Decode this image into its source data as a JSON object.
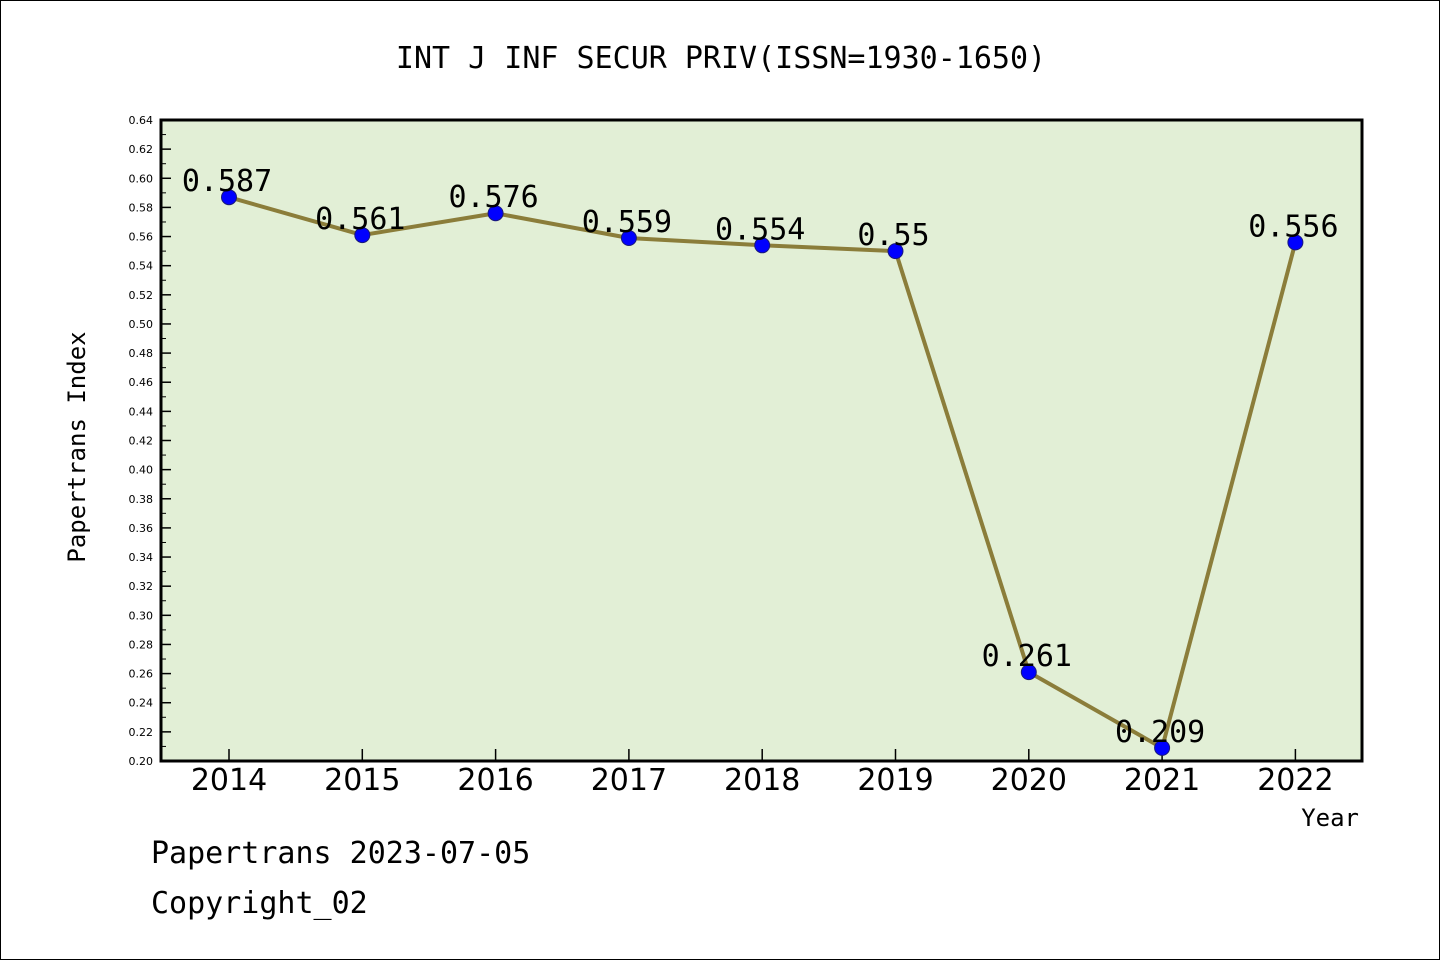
{
  "chart_data": {
    "type": "line",
    "title": "INT J INF SECUR PRIV(ISSN=1930-1650)",
    "xlabel": "Year",
    "ylabel": "Papertrans Index",
    "categories": [
      "2014",
      "2015",
      "2016",
      "2017",
      "2018",
      "2019",
      "2020",
      "2021",
      "2022"
    ],
    "series": [
      {
        "values": [
          0.587,
          0.561,
          0.576,
          0.559,
          0.554,
          0.55,
          0.261,
          0.209,
          0.556
        ],
        "data_labels": [
          "0.587",
          "0.561",
          "0.576",
          "0.559",
          "0.554",
          "0.55",
          "0.261",
          "0.209",
          "0.556"
        ],
        "line_color": "#8b7d3a",
        "marker_color": "#0000ff"
      }
    ],
    "ylim": [
      0.2,
      0.64
    ],
    "y_ticks": [
      "0.20",
      "0.22",
      "0.24",
      "0.26",
      "0.28",
      "0.30",
      "0.32",
      "0.34",
      "0.36",
      "0.38",
      "0.40",
      "0.42",
      "0.44",
      "0.46",
      "0.48",
      "0.50",
      "0.52",
      "0.54",
      "0.56",
      "0.58",
      "0.60",
      "0.62",
      "0.64"
    ],
    "plot_background": "#e2efd6",
    "grid": false,
    "legend": "none"
  },
  "footer": {
    "line1": "Papertrans 2023-07-05",
    "line2": "Copyright_02"
  }
}
